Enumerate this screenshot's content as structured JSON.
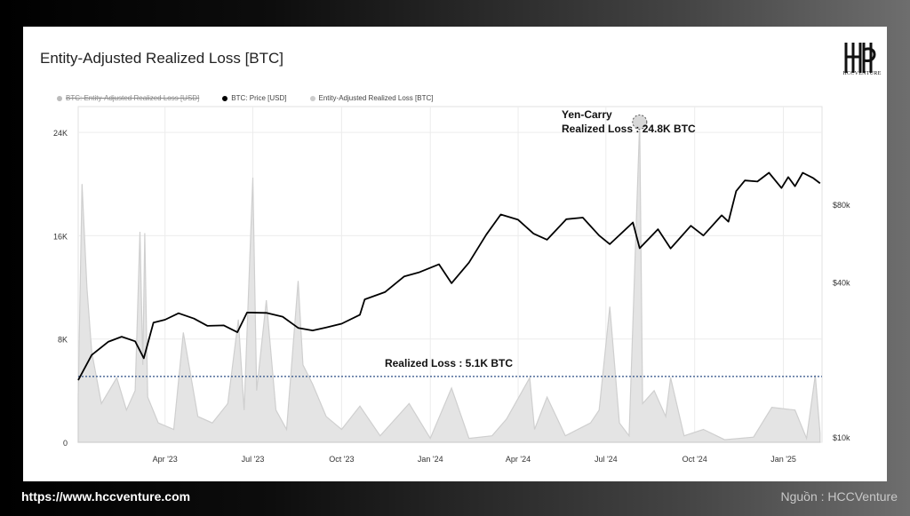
{
  "title": "Entity-Adjusted Realized Loss [BTC]",
  "logo_text": "HCCVENTURE",
  "footer": {
    "url": "https://www.hccventure.com",
    "source": "Nguồn : HCCVenture"
  },
  "colors": {
    "price_line": "#000000",
    "loss_bars": "#cfcfcf",
    "reference_line": "#2d4f86",
    "grid": "#ececec"
  },
  "chart_data": {
    "type": "line",
    "title": "Entity-Adjusted Realized Loss [BTC]",
    "legend": [
      {
        "name": "BTC: Entity-Adjusted Realized Loss [USD]",
        "color": "#bbbbbb",
        "hidden": true
      },
      {
        "name": "BTC: Price [USD]",
        "color": "#000000"
      },
      {
        "name": "Entity-Adjusted Realized Loss [BTC]",
        "color": "#cccccc"
      }
    ],
    "legend_position": "top-left",
    "grid": true,
    "x_ticks": [
      "Apr '23",
      "Jul '23",
      "Oct '23",
      "Jan '24",
      "Apr '24",
      "Jul '24",
      "Oct '24",
      "Jan '25"
    ],
    "left_axis": {
      "ticks": [
        "0",
        "8K",
        "16K",
        "24K"
      ],
      "ylim": [
        0,
        26000
      ]
    },
    "right_axis": {
      "ticks": [
        "$10k",
        "$40k",
        "$80k"
      ],
      "scale": "log"
    },
    "series": [
      {
        "name": "BTC: Price [USD]",
        "axis": "right",
        "points": [
          [
            "2023-01-01",
            16600
          ],
          [
            "2023-01-15",
            20800
          ],
          [
            "2023-02-01",
            23400
          ],
          [
            "2023-02-15",
            24500
          ],
          [
            "2023-03-01",
            23500
          ],
          [
            "2023-03-10",
            20200
          ],
          [
            "2023-03-20",
            27800
          ],
          [
            "2023-04-01",
            28500
          ],
          [
            "2023-04-15",
            30200
          ],
          [
            "2023-05-01",
            28800
          ],
          [
            "2023-05-15",
            27000
          ],
          [
            "2023-06-01",
            27100
          ],
          [
            "2023-06-15",
            25500
          ],
          [
            "2023-06-25",
            30400
          ],
          [
            "2023-07-15",
            30300
          ],
          [
            "2023-08-01",
            29300
          ],
          [
            "2023-08-17",
            26500
          ],
          [
            "2023-09-01",
            25900
          ],
          [
            "2023-09-15",
            26600
          ],
          [
            "2023-10-01",
            27500
          ],
          [
            "2023-10-20",
            29800
          ],
          [
            "2023-10-25",
            34200
          ],
          [
            "2023-11-15",
            36500
          ],
          [
            "2023-12-05",
            42000
          ],
          [
            "2023-12-20",
            43500
          ],
          [
            "2024-01-10",
            46800
          ],
          [
            "2024-01-23",
            39500
          ],
          [
            "2024-02-10",
            47500
          ],
          [
            "2024-02-28",
            61000
          ],
          [
            "2024-03-14",
            73000
          ],
          [
            "2024-04-01",
            69700
          ],
          [
            "2024-04-17",
            61500
          ],
          [
            "2024-05-01",
            58300
          ],
          [
            "2024-05-21",
            70000
          ],
          [
            "2024-06-07",
            71000
          ],
          [
            "2024-06-24",
            60500
          ],
          [
            "2024-07-05",
            56000
          ],
          [
            "2024-07-29",
            68000
          ],
          [
            "2024-08-05",
            54000
          ],
          [
            "2024-08-24",
            64000
          ],
          [
            "2024-09-06",
            53900
          ],
          [
            "2024-09-27",
            66000
          ],
          [
            "2024-10-10",
            60500
          ],
          [
            "2024-10-29",
            72500
          ],
          [
            "2024-11-05",
            68500
          ],
          [
            "2024-11-13",
            90000
          ],
          [
            "2024-11-22",
            99000
          ],
          [
            "2024-12-05",
            98000
          ],
          [
            "2024-12-17",
            106000
          ],
          [
            "2024-12-30",
            92500
          ],
          [
            "2025-01-06",
            102000
          ],
          [
            "2025-01-13",
            94000
          ],
          [
            "2025-01-21",
            106000
          ],
          [
            "2025-02-01",
            101000
          ],
          [
            "2025-02-08",
            96500
          ]
        ]
      },
      {
        "name": "Entity-Adjusted Realized Loss [BTC]",
        "axis": "left",
        "type": "area",
        "points": [
          [
            "2023-01-01",
            3500
          ],
          [
            "2023-01-05",
            20000
          ],
          [
            "2023-01-10",
            12000
          ],
          [
            "2023-01-15",
            7000
          ],
          [
            "2023-01-25",
            3000
          ],
          [
            "2023-02-10",
            5000
          ],
          [
            "2023-02-20",
            2500
          ],
          [
            "2023-03-01",
            4000
          ],
          [
            "2023-03-06",
            16300
          ],
          [
            "2023-03-09",
            6000
          ],
          [
            "2023-03-11",
            16200
          ],
          [
            "2023-03-14",
            3500
          ],
          [
            "2023-03-25",
            1500
          ],
          [
            "2023-04-10",
            1000
          ],
          [
            "2023-04-20",
            8500
          ],
          [
            "2023-05-05",
            2000
          ],
          [
            "2023-05-20",
            1500
          ],
          [
            "2023-06-05",
            3000
          ],
          [
            "2023-06-16",
            9500
          ],
          [
            "2023-06-22",
            2500
          ],
          [
            "2023-07-01",
            20500
          ],
          [
            "2023-07-05",
            4000
          ],
          [
            "2023-07-15",
            11000
          ],
          [
            "2023-07-25",
            2500
          ],
          [
            "2023-08-05",
            1000
          ],
          [
            "2023-08-17",
            12500
          ],
          [
            "2023-08-22",
            6000
          ],
          [
            "2023-09-01",
            4500
          ],
          [
            "2023-09-15",
            2000
          ],
          [
            "2023-10-01",
            1000
          ],
          [
            "2023-10-20",
            2800
          ],
          [
            "2023-11-10",
            500
          ],
          [
            "2023-12-10",
            3000
          ],
          [
            "2024-01-01",
            300
          ],
          [
            "2024-01-23",
            4200
          ],
          [
            "2024-02-10",
            300
          ],
          [
            "2024-03-05",
            500
          ],
          [
            "2024-03-20",
            1800
          ],
          [
            "2024-04-13",
            5000
          ],
          [
            "2024-04-18",
            1000
          ],
          [
            "2024-05-01",
            3500
          ],
          [
            "2024-05-20",
            500
          ],
          [
            "2024-06-15",
            1500
          ],
          [
            "2024-06-24",
            2500
          ],
          [
            "2024-07-05",
            10500
          ],
          [
            "2024-07-15",
            1500
          ],
          [
            "2024-07-25",
            500
          ],
          [
            "2024-08-05",
            24800
          ],
          [
            "2024-08-08",
            3000
          ],
          [
            "2024-08-20",
            4000
          ],
          [
            "2024-09-01",
            2000
          ],
          [
            "2024-09-06",
            5000
          ],
          [
            "2024-09-20",
            500
          ],
          [
            "2024-10-10",
            1000
          ],
          [
            "2024-11-01",
            200
          ],
          [
            "2024-12-01",
            400
          ],
          [
            "2024-12-20",
            2700
          ],
          [
            "2025-01-13",
            2500
          ],
          [
            "2025-01-25",
            300
          ],
          [
            "2025-02-03",
            5200
          ],
          [
            "2025-02-08",
            700
          ]
        ]
      }
    ],
    "reference_line": {
      "value": 5100,
      "label": "Realized Loss : 5.1K BTC"
    },
    "annotation": {
      "line1": "Yen-Carry",
      "line2": "Realized Loss : 24.8K BTC",
      "at": [
        "2024-08-05",
        24800
      ]
    }
  }
}
